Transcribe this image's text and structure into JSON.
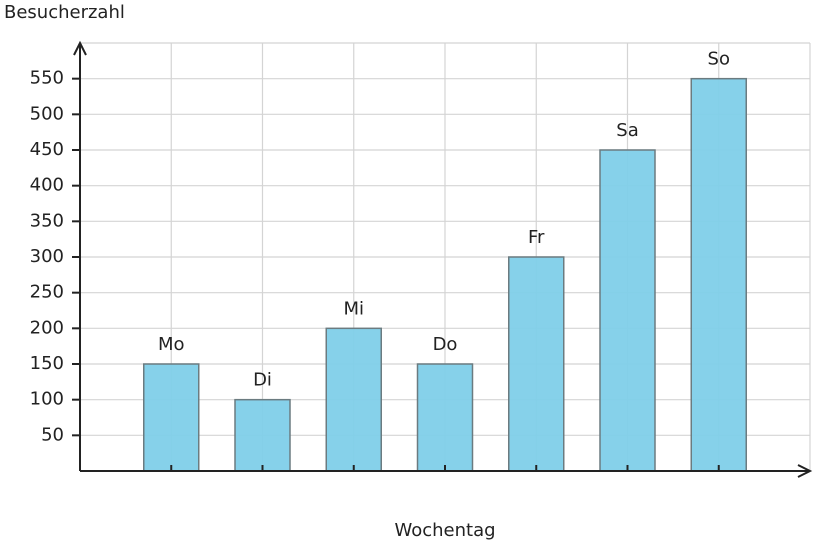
{
  "chart_data": {
    "type": "bar",
    "title": "Besucherzahl",
    "x_label": "Wochentag",
    "categories": [
      "Mo",
      "Di",
      "Mi",
      "Do",
      "Fr",
      "Sa",
      "So"
    ],
    "values": [
      150,
      100,
      200,
      150,
      300,
      450,
      550
    ],
    "color": "#7fcfe9",
    "ylim": [
      0,
      600
    ],
    "yticks": [
      50,
      100,
      150,
      200,
      250,
      300,
      350,
      400,
      450,
      500,
      550
    ],
    "grid": true
  }
}
